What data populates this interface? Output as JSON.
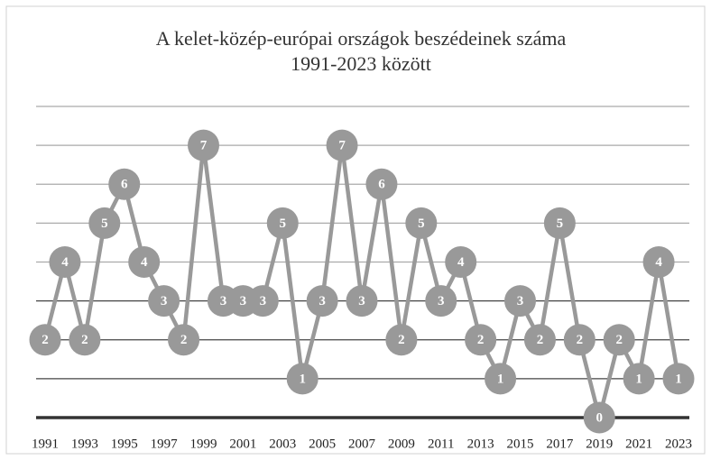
{
  "chart_data": {
    "type": "line",
    "title": [
      "A kelet-közép-európai  országok beszédeinek  száma",
      "1991-2023 között"
    ],
    "categories": [
      "1991",
      null,
      "1993",
      null,
      "1995",
      null,
      "1997",
      null,
      "1999",
      null,
      "2001",
      null,
      "2003",
      null,
      "2005",
      null,
      "2007",
      null,
      "2009",
      null,
      "2011",
      null,
      "2013",
      null,
      "2015",
      null,
      "2017",
      null,
      "2019",
      null,
      "2021",
      null,
      "2023"
    ],
    "values": [
      2,
      4,
      2,
      5,
      6,
      4,
      3,
      2,
      7,
      3,
      3,
      3,
      5,
      1,
      3,
      7,
      3,
      6,
      2,
      5,
      3,
      4,
      2,
      1,
      3,
      2,
      5,
      2,
      0,
      2,
      1,
      4,
      1
    ],
    "color": "#999999",
    "ylim": [
      0,
      8
    ],
    "yticks": [
      0,
      1,
      2,
      3,
      4,
      5,
      6,
      7,
      8
    ],
    "grid": true
  }
}
